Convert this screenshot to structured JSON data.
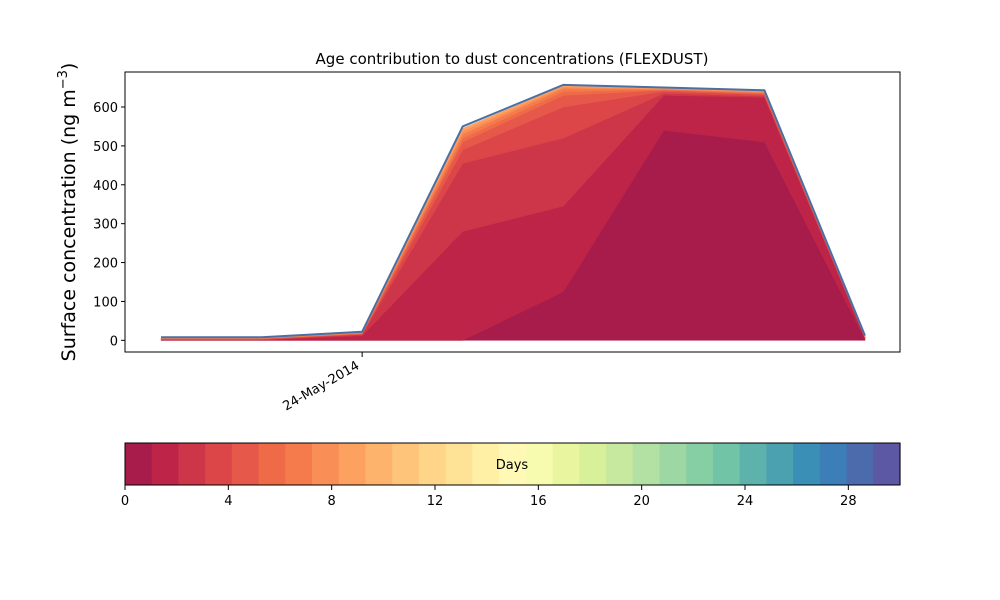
{
  "chart_data": {
    "type": "area",
    "title": "Age contribution to dust concentrations (FLEXDUST)",
    "ylabel": "Surface concentration (ng m",
    "ylabel_sup": "−3",
    "ylabel_close": ")",
    "ylim": [
      -30,
      690
    ],
    "yticks": [
      0,
      100,
      200,
      300,
      400,
      500,
      600
    ],
    "x": [
      "2014-05-23 12:00",
      "2014-05-23 18:00",
      "2014-05-24 00:00",
      "2014-05-24 06:00",
      "2014-05-24 12:00",
      "2014-05-24 18:00",
      "2014-05-25 00:00",
      "2014-05-25 06:00"
    ],
    "xticks": [
      {
        "x": "2014-05-24 00:00",
        "label": "24-May-2014"
      }
    ],
    "stacked_totals": [
      [
        0,
        0,
        0,
        0,
        125,
        540,
        510,
        2
      ],
      [
        1,
        1,
        12,
        280,
        345,
        630,
        625,
        5
      ],
      [
        2,
        2,
        15,
        455,
        520,
        635,
        628,
        6
      ],
      [
        3,
        3,
        16,
        490,
        600,
        640,
        632,
        7
      ],
      [
        4,
        4,
        17,
        510,
        630,
        643,
        634,
        8
      ],
      [
        5,
        5,
        18,
        520,
        640,
        645,
        636,
        9
      ],
      [
        5,
        5,
        19,
        530,
        648,
        646,
        638,
        9
      ],
      [
        6,
        6,
        20,
        538,
        652,
        648,
        640,
        10
      ],
      [
        7,
        7,
        21,
        545,
        655,
        650,
        641,
        11
      ]
    ],
    "total": [
      8,
      8,
      22,
      550,
      657,
      650,
      643,
      12
    ],
    "total_color": "#4a6fa5",
    "colorbar": {
      "label": "Days",
      "ticks": [
        0,
        4,
        8,
        12,
        16,
        20,
        24,
        28
      ],
      "range": [
        0,
        30
      ],
      "colors": [
        "#a71c4a",
        "#bd2448",
        "#cd3548",
        "#dc4649",
        "#e65849",
        "#ef6b48",
        "#f57b4c",
        "#f98f56",
        "#fca160",
        "#fdb36b",
        "#fec57a",
        "#fed589",
        "#fee397",
        "#fff0a6",
        "#fff9b5",
        "#f6fbaf",
        "#e9f69f",
        "#d9f09b",
        "#c7e89f",
        "#b3e0a3",
        "#9dd7a4",
        "#86cfa5",
        "#71c5a6",
        "#5db3ab",
        "#4ca1b0",
        "#3a8fb7",
        "#3c7eb8",
        "#4c6bad",
        "#5c58a3"
      ]
    }
  }
}
